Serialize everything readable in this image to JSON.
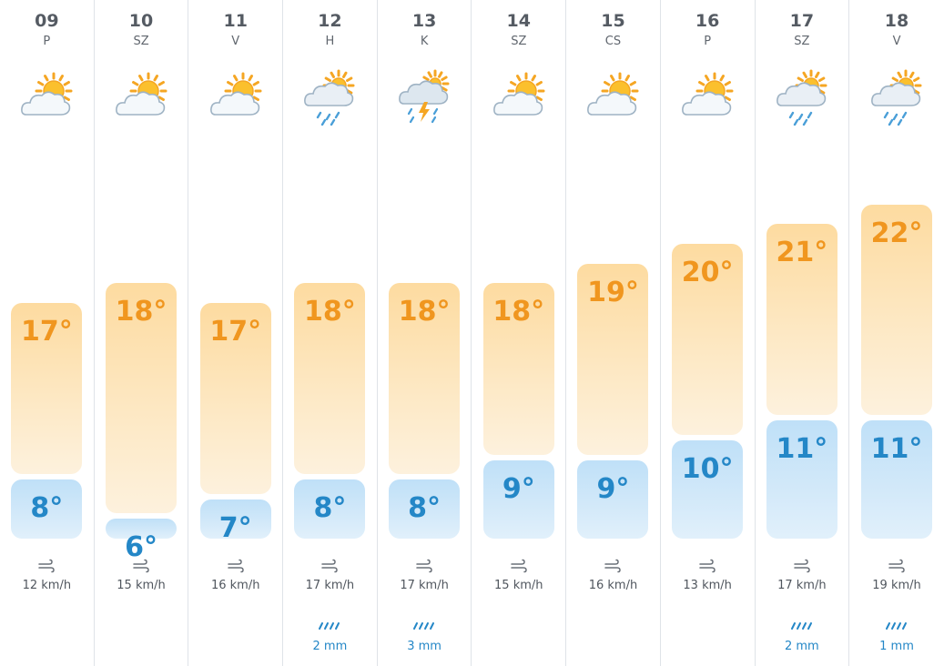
{
  "forecast": {
    "temp_scale": {
      "min": 5,
      "max": 23
    },
    "colors": {
      "high": "#f0961f",
      "low": "#2487c7",
      "precip": "#2487c7"
    },
    "days": [
      {
        "day": "09",
        "abbr": "P",
        "icon": "sun-behind-cloud-icon",
        "high": "17°",
        "low": "8°",
        "high_value": 17,
        "low_value": 8,
        "wind": "12 km/h",
        "precip": null
      },
      {
        "day": "10",
        "abbr": "SZ",
        "icon": "sun-behind-cloud-icon",
        "high": "18°",
        "low": "6°",
        "high_value": 18,
        "low_value": 6,
        "wind": "15 km/h",
        "precip": null
      },
      {
        "day": "11",
        "abbr": "V",
        "icon": "sun-behind-cloud-icon",
        "high": "17°",
        "low": "7°",
        "high_value": 17,
        "low_value": 7,
        "wind": "16 km/h",
        "precip": null
      },
      {
        "day": "12",
        "abbr": "H",
        "icon": "sun-rain-cloud-icon",
        "high": "18°",
        "low": "8°",
        "high_value": 18,
        "low_value": 8,
        "wind": "17 km/h",
        "precip": "2 mm"
      },
      {
        "day": "13",
        "abbr": "K",
        "icon": "thunderstorm-icon",
        "high": "18°",
        "low": "8°",
        "high_value": 18,
        "low_value": 8,
        "wind": "17 km/h",
        "precip": "3 mm"
      },
      {
        "day": "14",
        "abbr": "SZ",
        "icon": "sun-behind-cloud-icon",
        "high": "18°",
        "low": "9°",
        "high_value": 18,
        "low_value": 9,
        "wind": "15 km/h",
        "precip": null
      },
      {
        "day": "15",
        "abbr": "CS",
        "icon": "sun-behind-cloud-icon",
        "high": "19°",
        "low": "9°",
        "high_value": 19,
        "low_value": 9,
        "wind": "16 km/h",
        "precip": null
      },
      {
        "day": "16",
        "abbr": "P",
        "icon": "sun-behind-cloud-icon",
        "high": "20°",
        "low": "10°",
        "high_value": 20,
        "low_value": 10,
        "wind": "13 km/h",
        "precip": null
      },
      {
        "day": "17",
        "abbr": "SZ",
        "icon": "sun-rain-cloud-icon",
        "high": "21°",
        "low": "11°",
        "high_value": 21,
        "low_value": 11,
        "wind": "17 km/h",
        "precip": "2 mm"
      },
      {
        "day": "18",
        "abbr": "V",
        "icon": "sun-rain-cloud-icon",
        "high": "22°",
        "low": "11°",
        "high_value": 22,
        "low_value": 11,
        "wind": "19 km/h",
        "precip": "1 mm"
      }
    ]
  }
}
